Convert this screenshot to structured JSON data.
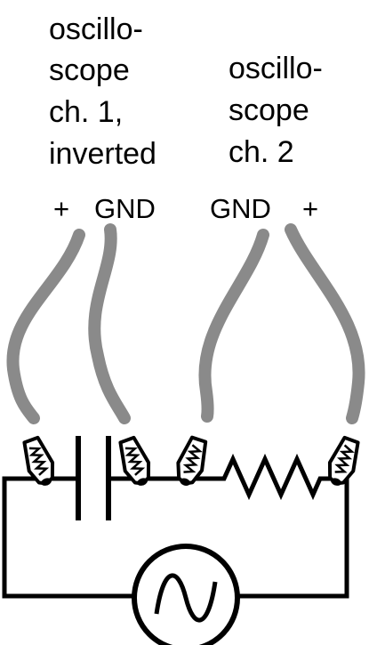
{
  "ch1": {
    "line1": "oscillo-",
    "line2": "scope",
    "line3": "ch. 1,",
    "line4": "inverted",
    "plus": "+",
    "gnd": "GND"
  },
  "ch2": {
    "line1": "oscillo-",
    "line2": "scope",
    "line3": "ch. 2",
    "gnd": "GND",
    "plus": "+"
  },
  "components": [
    "capacitor",
    "resistor",
    "ac-source"
  ],
  "colors": {
    "lead": "#8a8a8a",
    "wire": "#000000",
    "background": "#ffffff"
  }
}
